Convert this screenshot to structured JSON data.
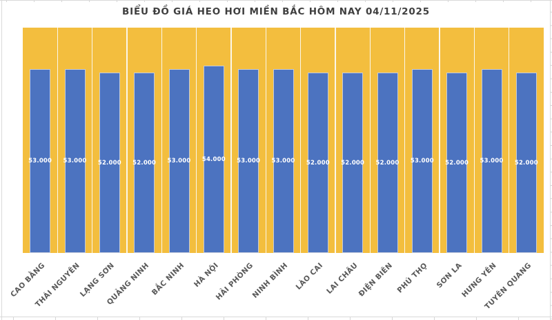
{
  "chart_data": {
    "type": "bar",
    "title": "BIỂU ĐỒ GIÁ HEO HƠI MIỀN BẮC HÔM NAY 04/11/2025",
    "categories": [
      "CAO BẰNG",
      "THÁI NGUYÊN",
      "LẠNG SƠN",
      "QUẢNG NINH",
      "BẮC NINH",
      "HÀ NỘI",
      "HẢI PHÒNG",
      "NINH BÌNH",
      "LÀO CAI",
      "LAI CHÂU",
      "ĐIỆN BIÊN",
      "PHÚ THỌ",
      "SƠN LA",
      "HƯNG YÊN",
      "TUYÊN QUANG"
    ],
    "values": [
      53000,
      53000,
      52000,
      52000,
      53000,
      54000,
      53000,
      53000,
      52000,
      52000,
      52000,
      53000,
      52000,
      53000,
      52000
    ],
    "data_labels": [
      "53.000",
      "53.000",
      "52.000",
      "52.000",
      "53.000",
      "54.000",
      "53.000",
      "53.000",
      "52.000",
      "52.000",
      "52.000",
      "53.000",
      "52.000",
      "53.000",
      "52.000"
    ],
    "xlabel": "",
    "ylabel": "",
    "ylim": [
      0,
      65000
    ],
    "legend_position": "none",
    "data_label_position": "center",
    "grid": "vertical white separators between categories",
    "colors": {
      "bar_fill": "#4C73C0",
      "bar_border": "#D8DBE0",
      "plot_background": "#F3BE3E",
      "data_label_text": "#FFFFFF",
      "category_label_text": "#595959",
      "title_text": "#3F3F3F",
      "page_background": "#FFFFFF",
      "excel_gridline": "#D9D9D9"
    }
  }
}
